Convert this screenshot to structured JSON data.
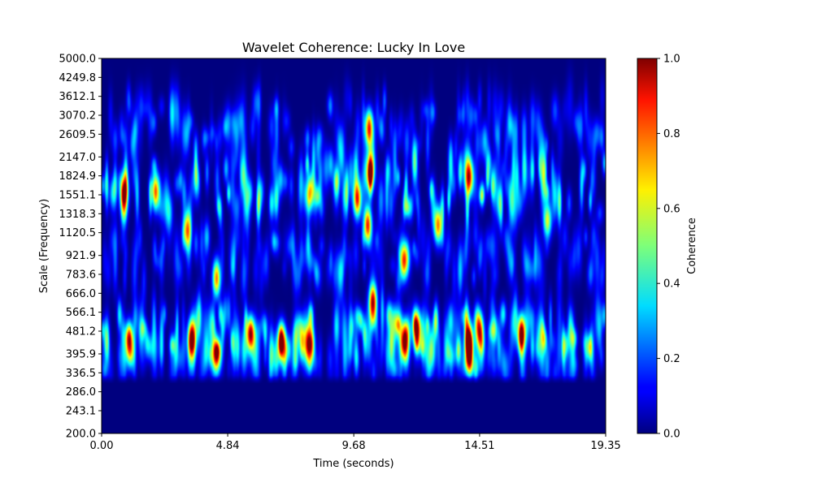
{
  "chart_data": {
    "type": "heatmap",
    "title": "Wavelet Coherence: Lucky In Love",
    "xlabel": "Time (seconds)",
    "ylabel": "Scale (Frequency)",
    "xlim": [
      0,
      19.35
    ],
    "xticks": [
      "0.00",
      "4.84",
      "9.68",
      "14.51",
      "19.35"
    ],
    "ylim": [
      200.0,
      5000.0
    ],
    "yscale": "log",
    "yticks": [
      "200.0",
      "243.1",
      "286.0",
      "336.5",
      "395.9",
      "481.2",
      "566.1",
      "666.0",
      "783.6",
      "921.9",
      "1120.5",
      "1318.3",
      "1551.1",
      "1824.9",
      "2147.0",
      "2609.5",
      "3070.2",
      "3612.1",
      "4249.8",
      "5000.0"
    ],
    "colormap": "jet",
    "colorbar": {
      "label": "Coherence",
      "range": [
        0.0,
        1.0
      ],
      "ticks": [
        "0.0",
        "0.2",
        "0.4",
        "0.6",
        "0.8",
        "1.0"
      ]
    },
    "hotspots": [
      {
        "t": 0.85,
        "freq": 1600,
        "value": 0.85
      },
      {
        "t": 1.05,
        "freq": 440,
        "value": 0.7
      },
      {
        "t": 2.1,
        "freq": 1600,
        "value": 0.6
      },
      {
        "t": 3.45,
        "freq": 440,
        "value": 0.9
      },
      {
        "t": 3.25,
        "freq": 1150,
        "value": 0.65
      },
      {
        "t": 4.4,
        "freq": 760,
        "value": 0.75
      },
      {
        "t": 4.4,
        "freq": 390,
        "value": 0.8
      },
      {
        "t": 5.7,
        "freq": 470,
        "value": 0.7
      },
      {
        "t": 6.9,
        "freq": 440,
        "value": 0.9
      },
      {
        "t": 8.0,
        "freq": 430,
        "value": 0.95
      },
      {
        "t": 8.0,
        "freq": 1600,
        "value": 0.6
      },
      {
        "t": 9.8,
        "freq": 1500,
        "value": 0.85
      },
      {
        "t": 10.2,
        "freq": 1200,
        "value": 0.85
      },
      {
        "t": 10.3,
        "freq": 1900,
        "value": 0.9
      },
      {
        "t": 10.25,
        "freq": 2750,
        "value": 0.85
      },
      {
        "t": 10.4,
        "freq": 620,
        "value": 0.95
      },
      {
        "t": 11.6,
        "freq": 440,
        "value": 0.85
      },
      {
        "t": 11.6,
        "freq": 880,
        "value": 0.75
      },
      {
        "t": 12.1,
        "freq": 490,
        "value": 0.95
      },
      {
        "t": 12.9,
        "freq": 1200,
        "value": 0.75
      },
      {
        "t": 14.1,
        "freq": 1800,
        "value": 0.8
      },
      {
        "t": 14.1,
        "freq": 430,
        "value": 0.9
      },
      {
        "t": 14.5,
        "freq": 480,
        "value": 0.8
      },
      {
        "t": 16.1,
        "freq": 470,
        "value": 0.95
      },
      {
        "t": 17.1,
        "freq": 1250,
        "value": 0.6
      }
    ]
  }
}
